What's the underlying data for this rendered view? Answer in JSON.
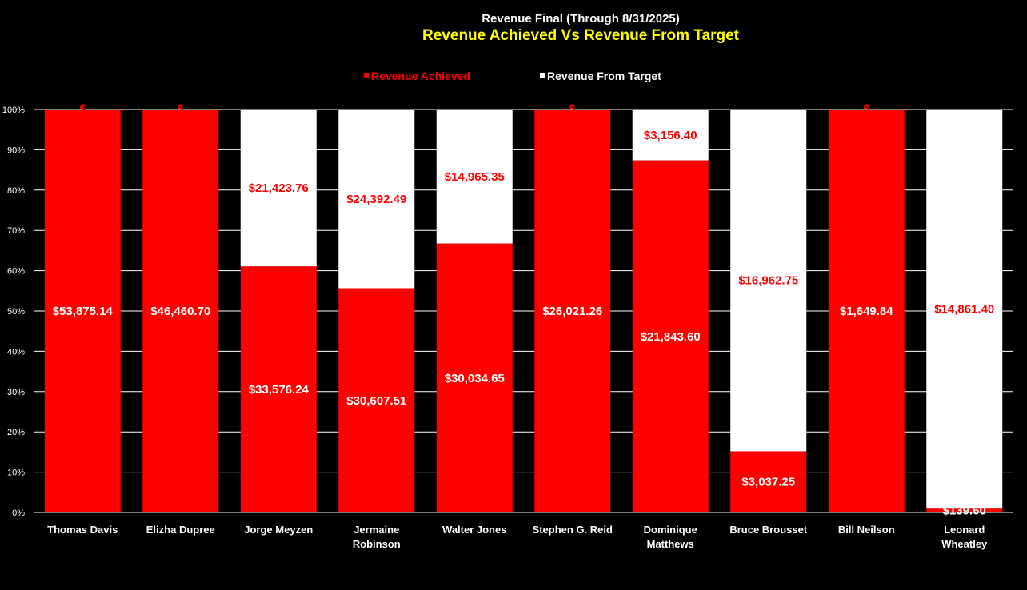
{
  "chart_data": {
    "type": "bar",
    "stacked": "percent",
    "title": "Revenue Final (Through 8/31/2025)",
    "subtitle": "Revenue Achieved Vs Revenue From Target",
    "categories": [
      [
        "Thomas Davis"
      ],
      [
        "Elizha Dupree"
      ],
      [
        "Jorge Meyzen"
      ],
      [
        "Jermaine",
        "Robinson"
      ],
      [
        "Walter Jones"
      ],
      [
        "Stephen G. Reid"
      ],
      [
        "Dominique",
        "Matthews"
      ],
      [
        "Bruce Brousset"
      ],
      [
        "Bill Neilson"
      ],
      [
        "Leonard",
        "Wheatley"
      ]
    ],
    "series": [
      {
        "name": "Revenue Achieved",
        "color": "#FF0000",
        "label_color": "#FFFFFF",
        "values": [
          53875.14,
          46460.7,
          33576.24,
          30607.51,
          30034.65,
          26021.26,
          21843.6,
          3037.25,
          1649.84,
          139.6
        ],
        "labels": [
          "$53,875.14",
          "$46,460.70",
          "$33,576.24",
          "$30,607.51",
          "$30,034.65",
          "$26,021.26",
          "$21,843.60",
          "$3,037.25",
          "$1,649.84",
          "$139.60"
        ]
      },
      {
        "name": "Revenue From Target",
        "color": "#FFFFFF",
        "label_color": "#FF0000",
        "values": [
          0,
          0,
          21423.76,
          24392.49,
          14965.35,
          0,
          3156.4,
          16962.75,
          0,
          14861.4
        ],
        "labels": [
          "$",
          "$",
          "$21,423.76",
          "$24,392.49",
          "$14,965.35",
          "$",
          "$3,156.40",
          "$16,962.75",
          "$",
          "$14,861.40"
        ]
      }
    ],
    "y_ticks": [
      "0%",
      "10%",
      "20%",
      "30%",
      "40%",
      "50%",
      "60%",
      "70%",
      "80%",
      "90%",
      "100%"
    ],
    "ylim": [
      0,
      100
    ],
    "grid": true,
    "legend": "top",
    "colors": {
      "background": "#000000",
      "title": "#FFFFFF",
      "subtitle": "#FFFF00",
      "grid": "#FFFFFF",
      "axis_text": "#FFFFFF"
    }
  }
}
